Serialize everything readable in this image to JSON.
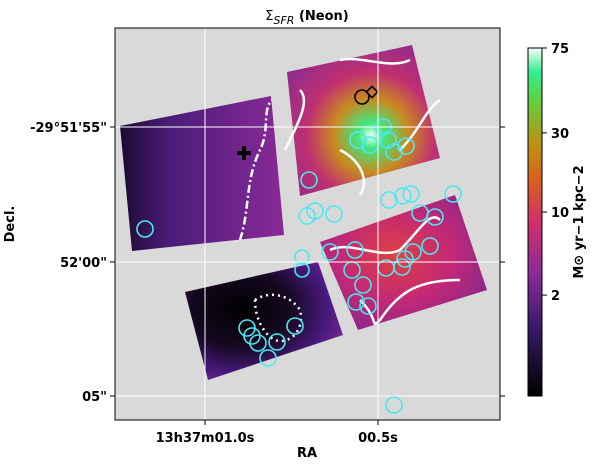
{
  "chart_data": {
    "type": "image",
    "title": {
      "symbol": "Σ",
      "subscript": "SFR",
      "text": " (Neon)"
    },
    "x_label": "RA",
    "y_label": "Decl.",
    "xticks": [
      {
        "value": 0,
        "label": "13h37m01.0s"
      },
      {
        "value": 1,
        "label": "00.5s"
      }
    ],
    "yticks": [
      {
        "value": 0,
        "label": "-29°51'55\""
      },
      {
        "value": 1,
        "label": "52'00\""
      },
      {
        "value": 2,
        "label": "05\""
      }
    ],
    "grid": true,
    "colorbar": {
      "label": "M⊙ yr−1 kpc−2",
      "clim": [
        0.05,
        75
      ],
      "scale": "power",
      "power": 0.25,
      "ticks": [
        2,
        10,
        30,
        75
      ]
    }
  }
}
